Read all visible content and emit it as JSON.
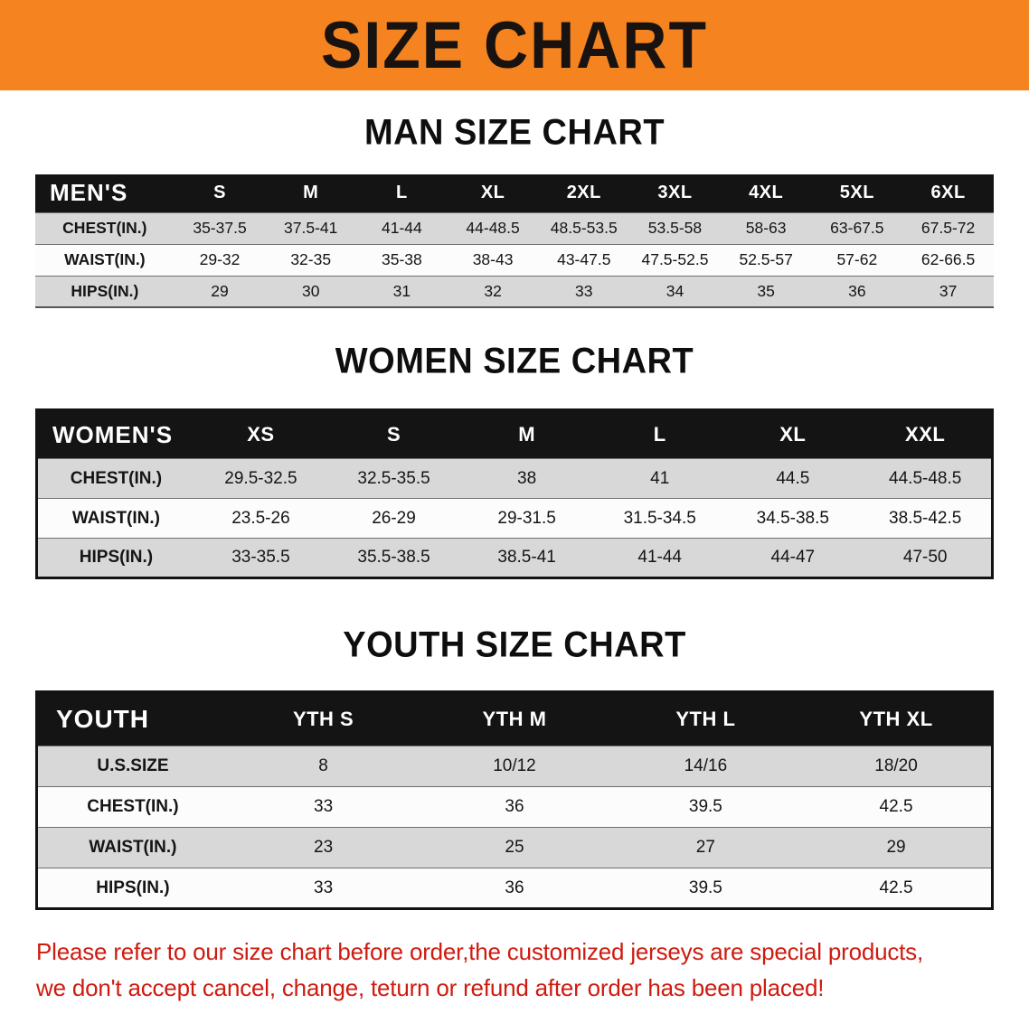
{
  "banner": {
    "title": "SIZE CHART",
    "bg_color": "#f5831f",
    "text_color": "#181310"
  },
  "sections": [
    {
      "id": "men",
      "heading": "MAN SIZE CHART",
      "table": {
        "corner_label": "MEN'S",
        "columns": [
          "S",
          "M",
          "L",
          "XL",
          "2XL",
          "3XL",
          "4XL",
          "5XL",
          "6XL"
        ],
        "rows": [
          {
            "label": "CHEST(IN.)",
            "values": [
              "35-37.5",
              "37.5-41",
              "41-44",
              "44-48.5",
              "48.5-53.5",
              "53.5-58",
              "58-63",
              "63-67.5",
              "67.5-72"
            ]
          },
          {
            "label": "WAIST(IN.)",
            "values": [
              "29-32",
              "32-35",
              "35-38",
              "38-43",
              "43-47.5",
              "47.5-52.5",
              "52.5-57",
              "57-62",
              "62-66.5"
            ]
          },
          {
            "label": "HIPS(IN.)",
            "values": [
              "29",
              "30",
              "31",
              "32",
              "33",
              "34",
              "35",
              "36",
              "37"
            ]
          }
        ]
      }
    },
    {
      "id": "women",
      "heading": "WOMEN SIZE CHART",
      "table": {
        "corner_label": "WOMEN'S",
        "columns": [
          "XS",
          "S",
          "M",
          "L",
          "XL",
          "XXL"
        ],
        "rows": [
          {
            "label": "CHEST(IN.)",
            "values": [
              "29.5-32.5",
              "32.5-35.5",
              "38",
              "41",
              "44.5",
              "44.5-48.5"
            ]
          },
          {
            "label": "WAIST(IN.)",
            "values": [
              "23.5-26",
              "26-29",
              "29-31.5",
              "31.5-34.5",
              "34.5-38.5",
              "38.5-42.5"
            ]
          },
          {
            "label": "HIPS(IN.)",
            "values": [
              "33-35.5",
              "35.5-38.5",
              "38.5-41",
              "41-44",
              "44-47",
              "47-50"
            ]
          }
        ]
      }
    },
    {
      "id": "youth",
      "heading": "YOUTH SIZE CHART",
      "table": {
        "corner_label": "YOUTH",
        "columns": [
          "YTH S",
          "YTH M",
          "YTH L",
          "YTH XL"
        ],
        "rows": [
          {
            "label": "U.S.SIZE",
            "values": [
              "8",
              "10/12",
              "14/16",
              "18/20"
            ]
          },
          {
            "label": "CHEST(IN.)",
            "values": [
              "33",
              "36",
              "39.5",
              "42.5"
            ]
          },
          {
            "label": "WAIST(IN.)",
            "values": [
              "23",
              "25",
              "27",
              "29"
            ]
          },
          {
            "label": "HIPS(IN.)",
            "values": [
              "33",
              "36",
              "39.5",
              "42.5"
            ]
          }
        ]
      }
    }
  ],
  "footer": {
    "line1": "Please refer to our size chart before order,the customized jerseys are special products,",
    "line2": "we don't accept cancel, change, teturn or refund after order has been placed!",
    "text_color": "#ce1b10"
  }
}
